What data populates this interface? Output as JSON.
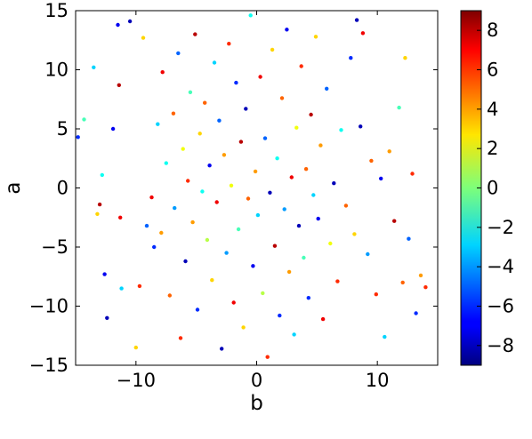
{
  "chart_data": {
    "type": "scatter",
    "title": "",
    "xlabel": "b",
    "ylabel": "a",
    "xlim": [
      -15,
      15
    ],
    "ylim": [
      -15,
      15
    ],
    "x_ticks": [
      -10,
      0,
      10
    ],
    "x_tick_labels": [
      "−10",
      "0",
      "10"
    ],
    "y_ticks": [
      -15,
      -10,
      -5,
      0,
      5,
      10,
      15
    ],
    "y_tick_labels": [
      "−15",
      "−10",
      "−5",
      "0",
      "5",
      "10",
      "15"
    ],
    "grid": false,
    "colorbar": {
      "colormap": "jet",
      "range": [
        -9,
        9
      ],
      "ticks": [
        -8,
        -6,
        -4,
        -2,
        0,
        2,
        4,
        6,
        8
      ],
      "tick_labels": [
        "−8",
        "−6",
        "−4",
        "−2",
        "0",
        "2",
        "4",
        "6",
        "8"
      ]
    },
    "points": [
      {
        "x": -14.8,
        "y": 4.3,
        "c": -6
      },
      {
        "x": -14.3,
        "y": 5.8,
        "c": -1
      },
      {
        "x": -13.5,
        "y": 10.2,
        "c": -3
      },
      {
        "x": -13.2,
        "y": -2.2,
        "c": 3
      },
      {
        "x": -13.0,
        "y": -1.4,
        "c": 8
      },
      {
        "x": -12.8,
        "y": 1.1,
        "c": -2
      },
      {
        "x": -12.6,
        "y": -7.3,
        "c": -7
      },
      {
        "x": -12.4,
        "y": -11.0,
        "c": -8
      },
      {
        "x": -11.9,
        "y": 5.0,
        "c": -7
      },
      {
        "x": -11.5,
        "y": 13.8,
        "c": -7
      },
      {
        "x": -11.4,
        "y": 8.7,
        "c": 8
      },
      {
        "x": -11.3,
        "y": -2.5,
        "c": 7
      },
      {
        "x": -11.2,
        "y": -8.5,
        "c": -3
      },
      {
        "x": -10.5,
        "y": 14.1,
        "c": -8
      },
      {
        "x": -10.0,
        "y": -13.5,
        "c": 3
      },
      {
        "x": -9.7,
        "y": -8.3,
        "c": 6
      },
      {
        "x": -9.4,
        "y": 12.7,
        "c": 3
      },
      {
        "x": -9.1,
        "y": -3.2,
        "c": -5
      },
      {
        "x": -8.7,
        "y": -0.8,
        "c": 7
      },
      {
        "x": -8.5,
        "y": -5.0,
        "c": -6
      },
      {
        "x": -8.2,
        "y": 5.4,
        "c": -3
      },
      {
        "x": -7.9,
        "y": -3.8,
        "c": 4
      },
      {
        "x": -7.8,
        "y": 9.8,
        "c": 7
      },
      {
        "x": -7.5,
        "y": 2.1,
        "c": -2
      },
      {
        "x": -7.2,
        "y": -9.1,
        "c": 5
      },
      {
        "x": -6.9,
        "y": 6.3,
        "c": 5
      },
      {
        "x": -6.8,
        "y": -1.7,
        "c": -4
      },
      {
        "x": -6.5,
        "y": 11.4,
        "c": -5
      },
      {
        "x": -6.3,
        "y": -12.7,
        "c": 6
      },
      {
        "x": -6.1,
        "y": 3.3,
        "c": 2
      },
      {
        "x": -5.9,
        "y": -6.2,
        "c": -8
      },
      {
        "x": -5.7,
        "y": 0.6,
        "c": 6
      },
      {
        "x": -5.5,
        "y": 8.1,
        "c": -1
      },
      {
        "x": -5.3,
        "y": -2.9,
        "c": 4
      },
      {
        "x": -5.1,
        "y": 13.0,
        "c": 8
      },
      {
        "x": -4.9,
        "y": -10.3,
        "c": -6
      },
      {
        "x": -4.7,
        "y": 4.6,
        "c": 3
      },
      {
        "x": -4.5,
        "y": -0.3,
        "c": -2
      },
      {
        "x": -4.3,
        "y": 7.2,
        "c": 5
      },
      {
        "x": -4.1,
        "y": -4.4,
        "c": 1
      },
      {
        "x": -3.9,
        "y": 1.9,
        "c": -7
      },
      {
        "x": -3.7,
        "y": -7.8,
        "c": 3
      },
      {
        "x": -3.5,
        "y": 10.6,
        "c": -3
      },
      {
        "x": -3.3,
        "y": -1.2,
        "c": 7
      },
      {
        "x": -3.1,
        "y": 5.7,
        "c": -5
      },
      {
        "x": -2.9,
        "y": -13.6,
        "c": -8
      },
      {
        "x": -2.7,
        "y": 2.8,
        "c": 4
      },
      {
        "x": -2.5,
        "y": -5.5,
        "c": -4
      },
      {
        "x": -2.3,
        "y": 12.2,
        "c": 6
      },
      {
        "x": -2.1,
        "y": 0.2,
        "c": 2
      },
      {
        "x": -1.9,
        "y": -9.7,
        "c": 7
      },
      {
        "x": -1.7,
        "y": 8.9,
        "c": -6
      },
      {
        "x": -1.5,
        "y": -3.5,
        "c": -1
      },
      {
        "x": -1.3,
        "y": 3.9,
        "c": 8
      },
      {
        "x": -1.1,
        "y": -11.8,
        "c": 3
      },
      {
        "x": -0.9,
        "y": 6.7,
        "c": -8
      },
      {
        "x": -0.7,
        "y": -0.9,
        "c": 5
      },
      {
        "x": -0.5,
        "y": 14.6,
        "c": -2
      },
      {
        "x": -0.3,
        "y": -6.6,
        "c": -7
      },
      {
        "x": -0.1,
        "y": 1.4,
        "c": 4
      },
      {
        "x": 0.1,
        "y": -2.3,
        "c": -3
      },
      {
        "x": 0.3,
        "y": 9.4,
        "c": 7
      },
      {
        "x": 0.5,
        "y": -8.9,
        "c": 1
      },
      {
        "x": 0.7,
        "y": 4.2,
        "c": -5
      },
      {
        "x": 0.9,
        "y": -14.3,
        "c": 6
      },
      {
        "x": 1.1,
        "y": -0.4,
        "c": -8
      },
      {
        "x": 1.3,
        "y": 11.7,
        "c": 3
      },
      {
        "x": 1.5,
        "y": -4.9,
        "c": 8
      },
      {
        "x": 1.7,
        "y": 2.5,
        "c": -2
      },
      {
        "x": 1.9,
        "y": -10.8,
        "c": -6
      },
      {
        "x": 2.1,
        "y": 7.6,
        "c": 5
      },
      {
        "x": 2.3,
        "y": -1.8,
        "c": -4
      },
      {
        "x": 2.5,
        "y": 13.4,
        "c": -7
      },
      {
        "x": 2.7,
        "y": -7.1,
        "c": 4
      },
      {
        "x": 2.9,
        "y": 0.9,
        "c": 7
      },
      {
        "x": 3.1,
        "y": -12.4,
        "c": -3
      },
      {
        "x": 3.3,
        "y": 5.1,
        "c": 2
      },
      {
        "x": 3.5,
        "y": -3.2,
        "c": -8
      },
      {
        "x": 3.7,
        "y": 10.3,
        "c": 6
      },
      {
        "x": 3.9,
        "y": -5.9,
        "c": -1
      },
      {
        "x": 4.1,
        "y": 1.6,
        "c": 5
      },
      {
        "x": 4.3,
        "y": -9.3,
        "c": -6
      },
      {
        "x": 4.5,
        "y": 6.2,
        "c": 8
      },
      {
        "x": 4.7,
        "y": -0.6,
        "c": -3
      },
      {
        "x": 4.9,
        "y": 12.8,
        "c": 3
      },
      {
        "x": 5.1,
        "y": -2.6,
        "c": -7
      },
      {
        "x": 5.3,
        "y": 3.6,
        "c": 4
      },
      {
        "x": 5.5,
        "y": -11.1,
        "c": 7
      },
      {
        "x": 5.8,
        "y": 8.4,
        "c": -5
      },
      {
        "x": 6.1,
        "y": -4.7,
        "c": 2
      },
      {
        "x": 6.4,
        "y": 0.4,
        "c": -8
      },
      {
        "x": 6.7,
        "y": -7.9,
        "c": 6
      },
      {
        "x": 7.0,
        "y": 4.9,
        "c": -2
      },
      {
        "x": 7.4,
        "y": -1.5,
        "c": 5
      },
      {
        "x": 7.8,
        "y": 11.0,
        "c": -6
      },
      {
        "x": 8.1,
        "y": -3.9,
        "c": 3
      },
      {
        "x": 8.3,
        "y": 14.2,
        "c": -8
      },
      {
        "x": 8.6,
        "y": 5.2,
        "c": -8
      },
      {
        "x": 8.8,
        "y": 13.1,
        "c": 7
      },
      {
        "x": 9.2,
        "y": -5.6,
        "c": -4
      },
      {
        "x": 9.5,
        "y": 2.3,
        "c": 5
      },
      {
        "x": 9.9,
        "y": -9.0,
        "c": 6
      },
      {
        "x": 10.3,
        "y": 0.8,
        "c": -7
      },
      {
        "x": 10.6,
        "y": -12.6,
        "c": -3
      },
      {
        "x": 11.0,
        "y": 3.1,
        "c": 4
      },
      {
        "x": 11.4,
        "y": -2.8,
        "c": 8
      },
      {
        "x": 11.8,
        "y": 6.8,
        "c": -1
      },
      {
        "x": 12.1,
        "y": -8.0,
        "c": 5
      },
      {
        "x": 12.3,
        "y": 11.0,
        "c": 3
      },
      {
        "x": 12.6,
        "y": -4.3,
        "c": -5
      },
      {
        "x": 12.9,
        "y": 1.2,
        "c": 6
      },
      {
        "x": 13.2,
        "y": -10.6,
        "c": -6
      },
      {
        "x": 13.6,
        "y": -7.4,
        "c": 4
      },
      {
        "x": 14.0,
        "y": -8.4,
        "c": 6
      }
    ]
  }
}
